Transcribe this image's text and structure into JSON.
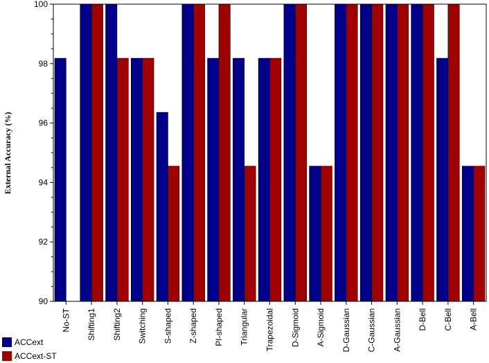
{
  "chart_data": {
    "type": "bar",
    "ylabel": "External Accuracy (%)",
    "ylim": [
      90,
      100
    ],
    "yticks": [
      90,
      92,
      94,
      96,
      98,
      100
    ],
    "grid": false,
    "legend_position": "bottom-left",
    "categories": [
      "No-ST",
      "Shifting1",
      "Shifting2",
      "Switching",
      "S-shaped",
      "Z-shaped",
      "PI-shaped",
      "Triangular",
      "Trapezoidal",
      "D-Sigmoid",
      "A-Sigmoid",
      "D-Gaussian",
      "C-Gaussian",
      "A-Gaussian",
      "D-Bell",
      "C-Bell",
      "A-Bell"
    ],
    "series": [
      {
        "name": "ACCext",
        "color": "#00008b",
        "values": [
          98.18,
          100,
          100,
          98.18,
          96.36,
          100,
          98.18,
          98.18,
          98.18,
          100,
          94.55,
          100,
          100,
          100,
          100,
          98.18,
          94.55
        ]
      },
      {
        "name": "ACCext-ST",
        "color": "#a00000",
        "values": [
          null,
          100,
          98.18,
          98.18,
          94.55,
          100,
          100,
          94.55,
          98.18,
          100,
          94.55,
          100,
          100,
          100,
          100,
          100,
          94.55
        ]
      }
    ]
  }
}
